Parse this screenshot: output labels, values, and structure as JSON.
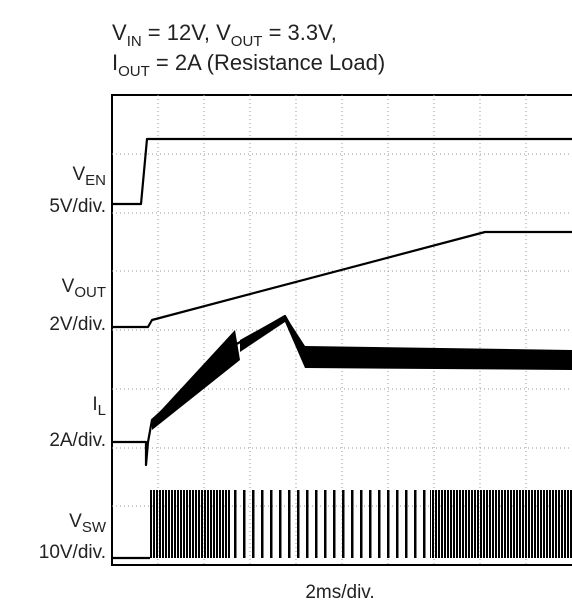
{
  "title": {
    "lines": [
      [
        "V",
        "IN",
        " = 12V, V",
        "OUT",
        " = 3.3V,"
      ],
      [
        "I",
        "OUT",
        " = 2A (Resistance Load)"
      ]
    ]
  },
  "channels": [
    {
      "symbol": "V",
      "sub": "EN",
      "scale": "5V/div."
    },
    {
      "symbol": "V",
      "sub": "OUT",
      "scale": "2V/div."
    },
    {
      "symbol": "I",
      "sub": "L",
      "scale": "2A/div."
    },
    {
      "symbol": "V",
      "sub": "SW",
      "scale": "10V/div."
    }
  ],
  "x_label": "2ms/div."
}
